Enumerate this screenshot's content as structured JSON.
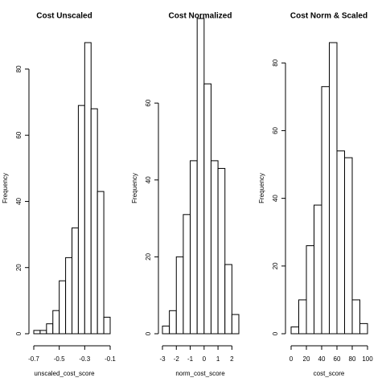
{
  "chart_data": [
    {
      "type": "histogram",
      "title": "Cost Unscaled",
      "x_label": "unscaled_cost_score",
      "y_label": "Frequency",
      "bins": [
        -0.7,
        -0.65,
        -0.6,
        -0.55,
        -0.5,
        -0.45,
        -0.4,
        -0.35,
        -0.3,
        -0.25,
        -0.2,
        -0.15,
        -0.1
      ],
      "values": [
        1,
        1,
        3,
        7,
        16,
        23,
        32,
        69,
        88,
        68,
        43,
        5
      ],
      "xlim": [
        -0.7,
        -0.1
      ],
      "xticks": [
        -0.7,
        -0.5,
        -0.3,
        -0.1
      ],
      "ylim": [
        0,
        88
      ],
      "yticks": [
        0,
        20,
        40,
        60,
        80
      ],
      "color": "#ffffff"
    },
    {
      "type": "histogram",
      "title": "Cost Normalized",
      "x_label": "norm_cost_score",
      "y_label": "Frequency",
      "bins": [
        -3,
        -2.5,
        -2,
        -1.5,
        -1,
        -0.5,
        0,
        0.5,
        1,
        1.5,
        2,
        2.5
      ],
      "values": [
        2,
        6,
        20,
        31,
        45,
        82,
        65,
        45,
        43,
        18,
        5
      ],
      "xlim": [
        -3,
        2.5
      ],
      "xticks": [
        -3,
        -2,
        -1,
        0,
        1,
        2
      ],
      "ylim": [
        0,
        82
      ],
      "yticks": [
        0,
        20,
        40,
        60
      ],
      "color": "#ffffff"
    },
    {
      "type": "histogram",
      "title": "Cost Norm & Scaled",
      "x_label": "cost_score",
      "y_label": "Frequency",
      "bins": [
        0,
        10,
        20,
        30,
        40,
        50,
        60,
        70,
        80,
        90,
        100
      ],
      "values": [
        2,
        10,
        26,
        38,
        73,
        86,
        54,
        52,
        10,
        3
      ],
      "xlim": [
        0,
        100
      ],
      "xticks": [
        0,
        20,
        40,
        60,
        80,
        100
      ],
      "ylim": [
        0,
        86
      ],
      "yticks": [
        0,
        20,
        40,
        60,
        80
      ],
      "color": "#ffffff"
    }
  ]
}
